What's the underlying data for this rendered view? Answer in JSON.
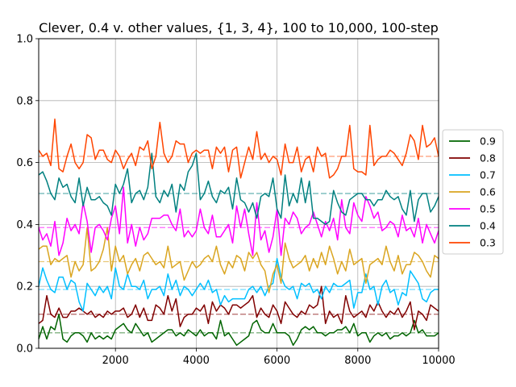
{
  "chart_data": {
    "type": "line",
    "title": "Clever, 0.4 v. other values, {1, 3, 4}, 100 to 10,000, 100-step",
    "xlabel": "",
    "ylabel": "",
    "xlim": [
      100,
      10000
    ],
    "ylim": [
      0.0,
      1.0
    ],
    "x_ticks": [
      2000,
      4000,
      6000,
      8000,
      10000
    ],
    "y_ticks": [
      0.0,
      0.2,
      0.4,
      0.6,
      0.8,
      1.0
    ],
    "x_tick_labels": [
      "2000",
      "4000",
      "6000",
      "8000",
      "10000"
    ],
    "y_tick_labels": [
      "0.0",
      "0.2",
      "0.4",
      "0.6",
      "0.8",
      "1.0"
    ],
    "grid": true,
    "legend_position": "right",
    "x": [
      100,
      200,
      300,
      400,
      500,
      600,
      700,
      800,
      900,
      1000,
      1100,
      1200,
      1300,
      1400,
      1500,
      1600,
      1700,
      1800,
      1900,
      2000,
      2100,
      2200,
      2300,
      2400,
      2500,
      2600,
      2700,
      2800,
      2900,
      3000,
      3100,
      3200,
      3300,
      3400,
      3500,
      3600,
      3700,
      3800,
      3900,
      4000,
      4100,
      4200,
      4300,
      4400,
      4500,
      4600,
      4700,
      4800,
      4900,
      5000,
      5100,
      5200,
      5300,
      5400,
      5500,
      5600,
      5700,
      5800,
      5900,
      6000,
      6100,
      6200,
      6300,
      6400,
      6500,
      6600,
      6700,
      6800,
      6900,
      7000,
      7100,
      7200,
      7300,
      7400,
      7500,
      7600,
      7700,
      7800,
      7900,
      8000,
      8100,
      8200,
      8300,
      8400,
      8500,
      8600,
      8700,
      8800,
      8900,
      9000,
      9100,
      9200,
      9300,
      9400,
      9500,
      9600,
      9700,
      9800,
      9900,
      10000
    ],
    "series": [
      {
        "name": "0.9",
        "color": "#006400",
        "mean": 0.05,
        "values": [
          0.03,
          0.07,
          0.03,
          0.07,
          0.06,
          0.11,
          0.03,
          0.02,
          0.04,
          0.05,
          0.05,
          0.04,
          0.02,
          0.05,
          0.03,
          0.04,
          0.03,
          0.04,
          0.03,
          0.06,
          0.07,
          0.08,
          0.06,
          0.05,
          0.08,
          0.06,
          0.04,
          0.05,
          0.02,
          0.03,
          0.04,
          0.05,
          0.06,
          0.06,
          0.04,
          0.05,
          0.04,
          0.06,
          0.05,
          0.04,
          0.06,
          0.04,
          0.05,
          0.05,
          0.03,
          0.09,
          0.04,
          0.05,
          0.03,
          0.01,
          0.02,
          0.03,
          0.04,
          0.08,
          0.09,
          0.06,
          0.05,
          0.05,
          0.08,
          0.05,
          0.05,
          0.05,
          0.04,
          0.01,
          0.03,
          0.06,
          0.07,
          0.06,
          0.07,
          0.05,
          0.05,
          0.04,
          0.05,
          0.05,
          0.06,
          0.06,
          0.07,
          0.05,
          0.08,
          0.04,
          0.05,
          0.05,
          0.02,
          0.04,
          0.05,
          0.04,
          0.05,
          0.03,
          0.04,
          0.04,
          0.05,
          0.04,
          0.05,
          0.09,
          0.05,
          0.06,
          0.04,
          0.04,
          0.04,
          0.05
        ]
      },
      {
        "name": "0.8",
        "color": "#800000",
        "mean": 0.11,
        "values": [
          0.08,
          0.09,
          0.17,
          0.11,
          0.1,
          0.13,
          0.1,
          0.1,
          0.12,
          0.12,
          0.13,
          0.12,
          0.11,
          0.12,
          0.1,
          0.11,
          0.1,
          0.12,
          0.11,
          0.12,
          0.12,
          0.13,
          0.1,
          0.11,
          0.14,
          0.1,
          0.13,
          0.09,
          0.09,
          0.14,
          0.13,
          0.11,
          0.17,
          0.12,
          0.16,
          0.07,
          0.1,
          0.11,
          0.11,
          0.13,
          0.12,
          0.14,
          0.08,
          0.15,
          0.12,
          0.14,
          0.13,
          0.11,
          0.14,
          0.14,
          0.13,
          0.14,
          0.15,
          0.17,
          0.1,
          0.13,
          0.11,
          0.1,
          0.14,
          0.12,
          0.08,
          0.15,
          0.13,
          0.11,
          0.1,
          0.12,
          0.11,
          0.14,
          0.13,
          0.14,
          0.2,
          0.08,
          0.12,
          0.1,
          0.11,
          0.08,
          0.17,
          0.12,
          0.1,
          0.11,
          0.12,
          0.1,
          0.14,
          0.12,
          0.15,
          0.12,
          0.1,
          0.12,
          0.11,
          0.13,
          0.1,
          0.12,
          0.15,
          0.06,
          0.12,
          0.11,
          0.09,
          0.14,
          0.13,
          0.12
        ]
      },
      {
        "name": "0.7",
        "color": "#00bfff",
        "mean": 0.19,
        "values": [
          0.2,
          0.26,
          0.22,
          0.19,
          0.18,
          0.23,
          0.23,
          0.19,
          0.22,
          0.21,
          0.15,
          0.12,
          0.21,
          0.19,
          0.17,
          0.2,
          0.18,
          0.2,
          0.16,
          0.26,
          0.2,
          0.19,
          0.24,
          0.2,
          0.2,
          0.19,
          0.22,
          0.16,
          0.19,
          0.19,
          0.2,
          0.17,
          0.24,
          0.19,
          0.22,
          0.17,
          0.2,
          0.19,
          0.17,
          0.19,
          0.21,
          0.19,
          0.22,
          0.18,
          0.19,
          0.14,
          0.17,
          0.15,
          0.16,
          0.16,
          0.16,
          0.16,
          0.19,
          0.2,
          0.18,
          0.2,
          0.17,
          0.2,
          0.21,
          0.29,
          0.23,
          0.2,
          0.19,
          0.2,
          0.16,
          0.21,
          0.2,
          0.21,
          0.18,
          0.19,
          0.16,
          0.2,
          0.18,
          0.21,
          0.2,
          0.2,
          0.21,
          0.22,
          0.13,
          0.18,
          0.18,
          0.24,
          0.19,
          0.2,
          0.14,
          0.2,
          0.22,
          0.18,
          0.19,
          0.14,
          0.18,
          0.17,
          0.25,
          0.23,
          0.21,
          0.16,
          0.15,
          0.18,
          0.19,
          0.19
        ]
      },
      {
        "name": "0.6",
        "color": "#daa520",
        "mean": 0.28,
        "values": [
          0.32,
          0.33,
          0.33,
          0.27,
          0.29,
          0.28,
          0.29,
          0.3,
          0.23,
          0.28,
          0.25,
          0.27,
          0.39,
          0.25,
          0.26,
          0.28,
          0.32,
          0.39,
          0.25,
          0.33,
          0.28,
          0.3,
          0.24,
          0.27,
          0.29,
          0.25,
          0.3,
          0.31,
          0.29,
          0.27,
          0.28,
          0.26,
          0.33,
          0.26,
          0.27,
          0.28,
          0.22,
          0.25,
          0.28,
          0.26,
          0.27,
          0.29,
          0.3,
          0.28,
          0.33,
          0.27,
          0.24,
          0.28,
          0.26,
          0.3,
          0.29,
          0.25,
          0.31,
          0.29,
          0.31,
          0.27,
          0.25,
          0.18,
          0.24,
          0.27,
          0.21,
          0.34,
          0.29,
          0.26,
          0.27,
          0.28,
          0.3,
          0.25,
          0.29,
          0.26,
          0.31,
          0.27,
          0.33,
          0.29,
          0.24,
          0.28,
          0.25,
          0.32,
          0.27,
          0.28,
          0.29,
          0.21,
          0.27,
          0.28,
          0.29,
          0.27,
          0.33,
          0.28,
          0.25,
          0.3,
          0.24,
          0.27,
          0.27,
          0.31,
          0.3,
          0.28,
          0.25,
          0.23,
          0.3,
          0.29
        ]
      },
      {
        "name": "0.5",
        "color": "#ff00ff",
        "mean": 0.39,
        "values": [
          0.39,
          0.35,
          0.37,
          0.33,
          0.41,
          0.3,
          0.34,
          0.42,
          0.38,
          0.4,
          0.37,
          0.47,
          0.41,
          0.31,
          0.39,
          0.4,
          0.38,
          0.35,
          0.42,
          0.46,
          0.37,
          0.52,
          0.34,
          0.4,
          0.33,
          0.39,
          0.35,
          0.37,
          0.42,
          0.42,
          0.42,
          0.43,
          0.43,
          0.4,
          0.38,
          0.45,
          0.36,
          0.38,
          0.36,
          0.38,
          0.45,
          0.39,
          0.37,
          0.43,
          0.36,
          0.36,
          0.38,
          0.4,
          0.34,
          0.46,
          0.39,
          0.45,
          0.37,
          0.3,
          0.47,
          0.35,
          0.38,
          0.31,
          0.36,
          0.45,
          0.3,
          0.42,
          0.4,
          0.44,
          0.42,
          0.37,
          0.39,
          0.4,
          0.44,
          0.4,
          0.36,
          0.41,
          0.38,
          0.42,
          0.35,
          0.48,
          0.39,
          0.37,
          0.47,
          0.43,
          0.41,
          0.49,
          0.46,
          0.42,
          0.44,
          0.38,
          0.39,
          0.41,
          0.4,
          0.36,
          0.43,
          0.38,
          0.39,
          0.36,
          0.42,
          0.34,
          0.4,
          0.37,
          0.34,
          0.38
        ]
      },
      {
        "name": "0.4",
        "color": "#008080",
        "mean": 0.5,
        "values": [
          0.56,
          0.57,
          0.54,
          0.5,
          0.48,
          0.55,
          0.52,
          0.53,
          0.49,
          0.47,
          0.55,
          0.46,
          0.52,
          0.48,
          0.48,
          0.49,
          0.47,
          0.46,
          0.43,
          0.53,
          0.5,
          0.53,
          0.58,
          0.47,
          0.5,
          0.51,
          0.48,
          0.52,
          0.63,
          0.49,
          0.47,
          0.51,
          0.49,
          0.53,
          0.44,
          0.53,
          0.51,
          0.57,
          0.59,
          0.63,
          0.48,
          0.5,
          0.54,
          0.49,
          0.47,
          0.51,
          0.5,
          0.52,
          0.45,
          0.55,
          0.48,
          0.47,
          0.44,
          0.47,
          0.42,
          0.49,
          0.5,
          0.49,
          0.55,
          0.45,
          0.42,
          0.56,
          0.46,
          0.5,
          0.47,
          0.55,
          0.47,
          0.54,
          0.42,
          0.42,
          0.41,
          0.4,
          0.41,
          0.51,
          0.47,
          0.44,
          0.43,
          0.48,
          0.49,
          0.5,
          0.5,
          0.48,
          0.48,
          0.46,
          0.48,
          0.48,
          0.51,
          0.49,
          0.48,
          0.49,
          0.45,
          0.43,
          0.51,
          0.41,
          0.48,
          0.5,
          0.5,
          0.44,
          0.46,
          0.49
        ]
      },
      {
        "name": "0.3",
        "color": "#ff4500",
        "mean": 0.62,
        "values": [
          0.64,
          0.62,
          0.63,
          0.59,
          0.74,
          0.58,
          0.57,
          0.62,
          0.66,
          0.6,
          0.58,
          0.6,
          0.69,
          0.68,
          0.61,
          0.64,
          0.64,
          0.61,
          0.6,
          0.64,
          0.62,
          0.58,
          0.61,
          0.63,
          0.59,
          0.65,
          0.64,
          0.67,
          0.58,
          0.62,
          0.73,
          0.63,
          0.6,
          0.62,
          0.67,
          0.66,
          0.66,
          0.6,
          0.63,
          0.64,
          0.63,
          0.64,
          0.64,
          0.58,
          0.65,
          0.63,
          0.65,
          0.57,
          0.64,
          0.65,
          0.55,
          0.6,
          0.65,
          0.61,
          0.7,
          0.61,
          0.63,
          0.6,
          0.62,
          0.61,
          0.56,
          0.66,
          0.6,
          0.6,
          0.65,
          0.57,
          0.61,
          0.62,
          0.57,
          0.65,
          0.62,
          0.63,
          0.55,
          0.56,
          0.58,
          0.62,
          0.62,
          0.72,
          0.58,
          0.57,
          0.57,
          0.56,
          0.72,
          0.59,
          0.61,
          0.62,
          0.62,
          0.64,
          0.63,
          0.61,
          0.59,
          0.63,
          0.69,
          0.67,
          0.61,
          0.72,
          0.65,
          0.66,
          0.68,
          0.62
        ]
      }
    ]
  }
}
